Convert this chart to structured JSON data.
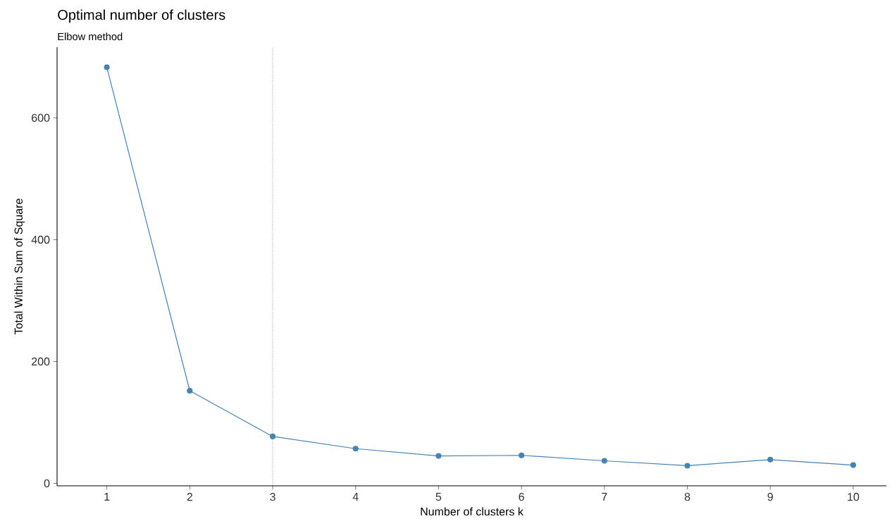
{
  "chart_data": {
    "type": "line",
    "title": "Optimal number of clusters",
    "subtitle": "Elbow method",
    "xlabel": "Number of clusters k",
    "ylabel": "Total Within Sum of Square",
    "x": [
      1,
      2,
      3,
      4,
      5,
      6,
      7,
      8,
      9,
      10
    ],
    "series": [
      {
        "color": "#4682b4",
        "values": [
          683,
          152,
          77,
          57,
          45,
          46,
          37,
          29,
          39,
          30
        ]
      }
    ],
    "xlim": [
      0.4,
      10.4
    ],
    "xticks": [
      1,
      2,
      3,
      4,
      5,
      6,
      7,
      8,
      9,
      10
    ],
    "ylim": [
      -4,
      716
    ],
    "yticks": [
      0,
      200,
      400,
      600
    ],
    "ref_lines": [
      {
        "axis": "x",
        "value": 3,
        "line_style": "dotted",
        "color": "#000000"
      }
    ],
    "marker": "circle",
    "line_style": "solid",
    "grid": false
  }
}
